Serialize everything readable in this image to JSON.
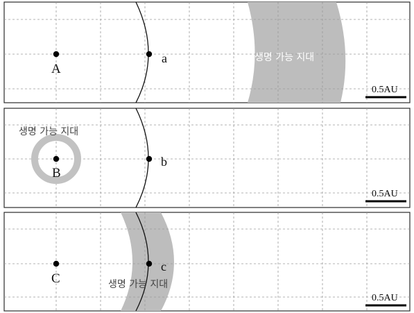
{
  "panels": [
    {
      "id": "A",
      "star_label": "A",
      "planet_label": "a",
      "zone_label": "생명 가능 지대",
      "scale_label": "0.5AU"
    },
    {
      "id": "B",
      "star_label": "B",
      "planet_label": "b",
      "zone_label": "생명 가능 지대",
      "scale_label": "0.5AU"
    },
    {
      "id": "C",
      "star_label": "C",
      "planet_label": "c",
      "zone_label": "생명 가능 지대",
      "scale_label": "0.5AU"
    }
  ],
  "colors": {
    "habitable_zone": "#bdbdbd",
    "orbit": "#111111",
    "grid": "#9a9a9a"
  }
}
